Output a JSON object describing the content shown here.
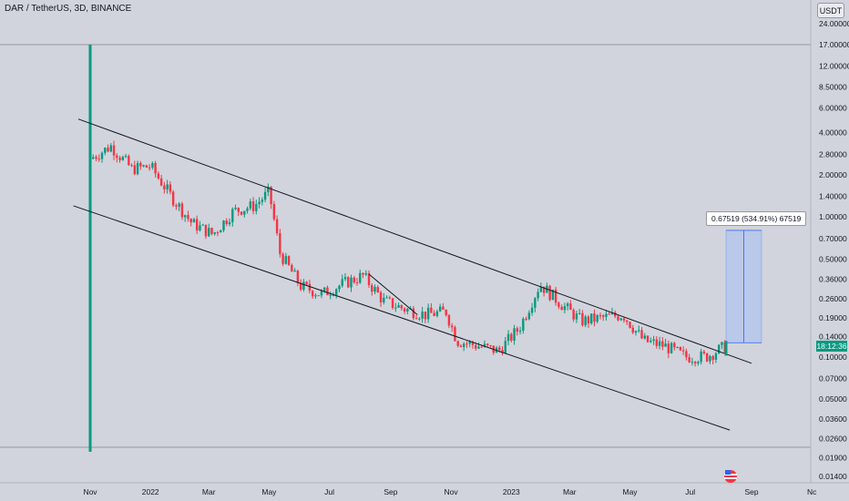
{
  "header": {
    "title": "DAR / TetherUS, 3D, BINANCE",
    "currency_button": "USDT"
  },
  "measure": {
    "label": "0.67519 (534.91%) 67519"
  },
  "last_price_badge": "18:12:36",
  "colors": {
    "background": "#d1d4dc",
    "up": "#089981",
    "down": "#f23645",
    "channel_line": "#131722",
    "measure_fill": "#b2c4ee"
  },
  "chart_data": {
    "type": "candlestick",
    "symbol": "DAR / TetherUS",
    "timeframe": "3D",
    "exchange": "BINANCE",
    "y_scale": "log",
    "y_ticks": [
      "24.00000",
      "17.00000",
      "12.00000",
      "8.50000",
      "6.00000",
      "4.00000",
      "2.80000",
      "2.00000",
      "1.40000",
      "1.00000",
      "0.70000",
      "0.50000",
      "0.36000",
      "0.26000",
      "0.19000",
      "0.14000",
      "0.10000",
      "0.07000",
      "0.05000",
      "0.03600",
      "0.02600",
      "0.01900",
      "0.01400"
    ],
    "x_ticks": [
      "Nov",
      "2022",
      "Mar",
      "May",
      "Jul",
      "Sep",
      "Nov",
      "2023",
      "Mar",
      "May",
      "Jul",
      "Sep",
      "Nc"
    ],
    "x": [
      "2021-11-01",
      "2021-11-22",
      "2021-12-13",
      "2022-01-01",
      "2022-01-22",
      "2022-02-12",
      "2022-03-05",
      "2022-03-26",
      "2022-04-16",
      "2022-05-01",
      "2022-05-12",
      "2022-06-02",
      "2022-06-23",
      "2022-07-14",
      "2022-08-04",
      "2022-08-25",
      "2022-09-15",
      "2022-10-06",
      "2022-10-27",
      "2022-11-07",
      "2022-11-28",
      "2022-12-19",
      "2023-01-09",
      "2023-01-30",
      "2023-02-20",
      "2023-03-13",
      "2023-04-03",
      "2023-04-24",
      "2023-05-15",
      "2023-06-05",
      "2023-06-26",
      "2023-07-17",
      "2023-08-07"
    ],
    "close": [
      2.6,
      3.2,
      2.2,
      2.3,
      1.4,
      0.9,
      0.75,
      1.1,
      1.2,
      1.5,
      0.55,
      0.32,
      0.28,
      0.33,
      0.38,
      0.25,
      0.22,
      0.2,
      0.21,
      0.13,
      0.12,
      0.11,
      0.16,
      0.33,
      0.24,
      0.18,
      0.19,
      0.2,
      0.13,
      0.12,
      0.1,
      0.1,
      0.12
    ],
    "spike": {
      "date": "2021-11-01",
      "high": 17.0,
      "low": 0.021
    },
    "last_price": 0.12,
    "measure_range": {
      "low": 0.1262,
      "high": 0.80139,
      "change": "0.67519",
      "percent": "534.91%"
    },
    "channel_upper": [
      {
        "date": "2021-10-20",
        "price": 5.0
      },
      {
        "date": "2023-09-01",
        "price": 0.09
      }
    ],
    "channel_lower": [
      {
        "date": "2021-10-15",
        "price": 1.2
      },
      {
        "date": "2023-08-10",
        "price": 0.03
      }
    ],
    "grid": false,
    "xlabel": "",
    "ylabel": ""
  }
}
